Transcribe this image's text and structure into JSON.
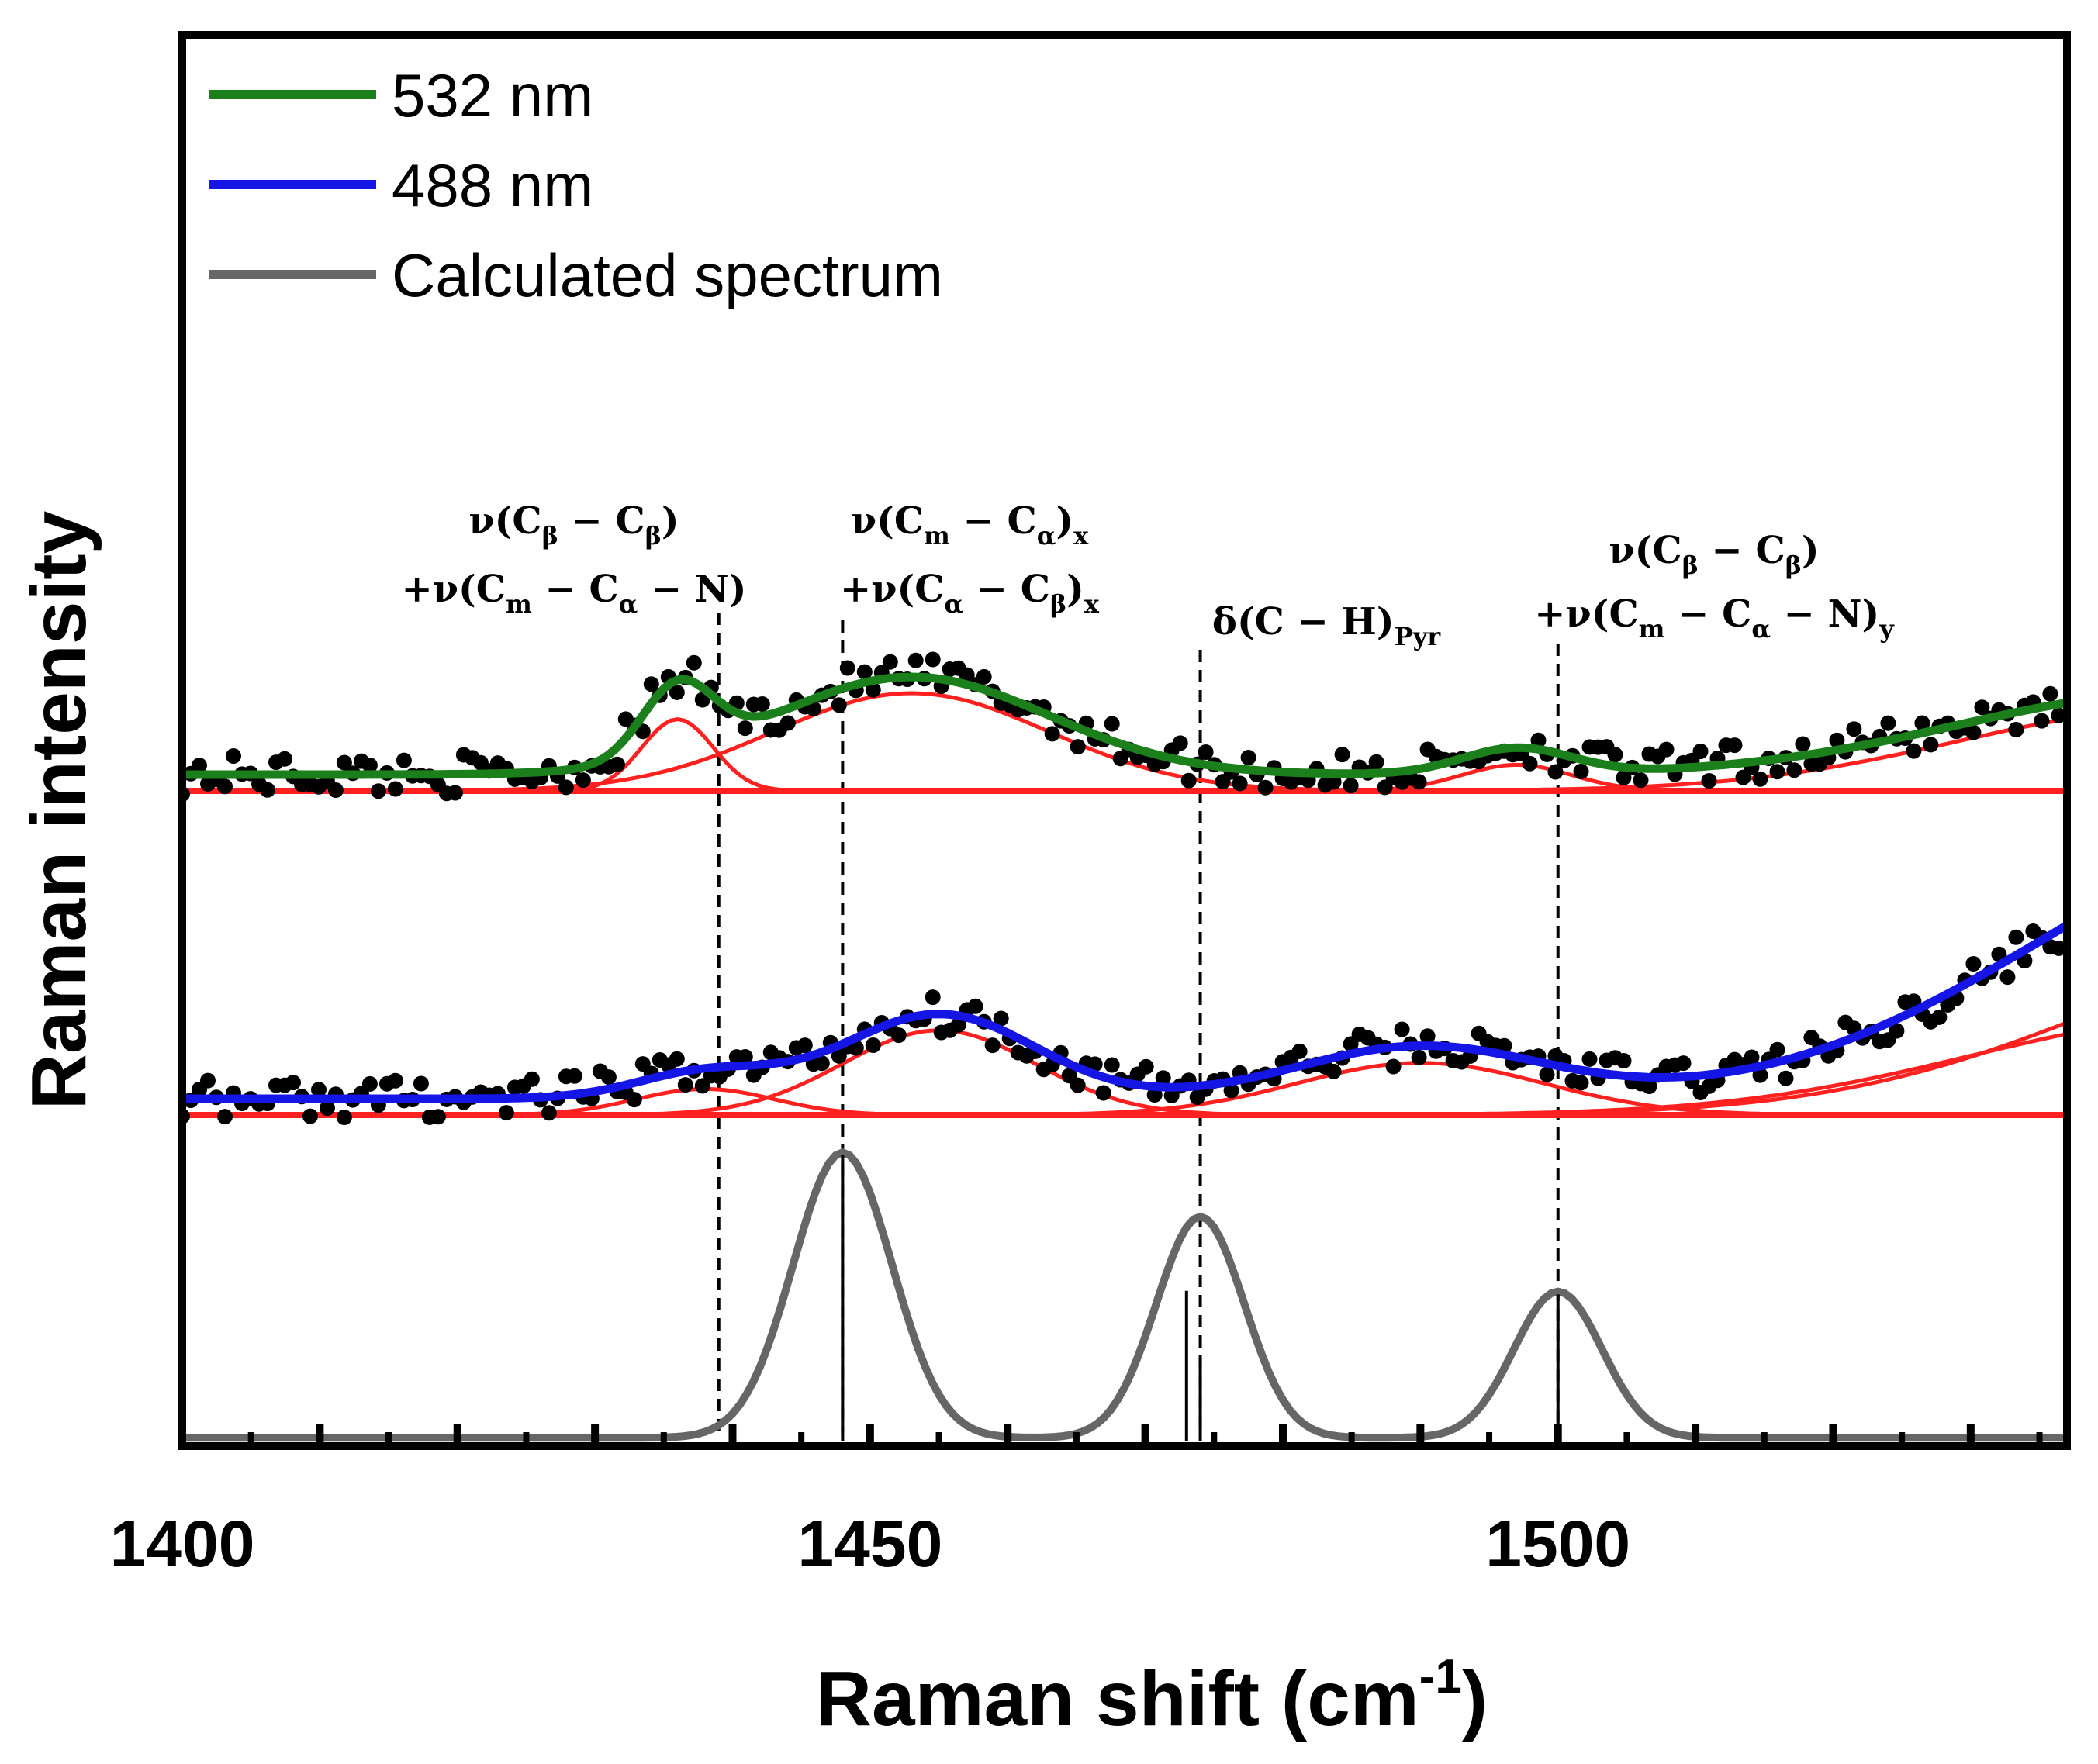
{
  "chart_data": {
    "type": "line",
    "title": "",
    "xlabel": "Raman shift (cm",
    "xlabel_sup": "-1",
    "xlabel_close": ")",
    "ylabel": "Raman intensity",
    "xlim": [
      1400,
      1537
    ],
    "xticks": [
      {
        "value": 1400,
        "label": "1400"
      },
      {
        "value": 1450,
        "label": "1450"
      },
      {
        "value": 1500,
        "label": "1500"
      }
    ],
    "grid": false,
    "legend_position": "top-left",
    "legend": [
      {
        "name": "532 nm",
        "color": "#1b7f1b"
      },
      {
        "name": "488 nm",
        "color": "#1515e6"
      },
      {
        "name": "Calculated spectrum",
        "color": "#666666"
      }
    ],
    "colors": {
      "component": "#ff2020",
      "data_points": "#000000",
      "stick": "#000000"
    },
    "series": [
      {
        "name": "532 nm",
        "baseline": 0,
        "offset": 0.96,
        "scale": 1.0,
        "components": [
          {
            "center": 1436,
            "amplitude": 0.22,
            "width": 2.6
          },
          {
            "center": 1453,
            "amplitude": 0.3,
            "width": 10
          },
          {
            "center": 1497,
            "amplitude": 0.08,
            "width": 4
          },
          {
            "center": 1545,
            "amplitude": 0.25,
            "width": 16
          }
        ]
      },
      {
        "name": "488 nm",
        "baseline": 0,
        "offset": 0.24,
        "scale": 1.0,
        "components": [
          {
            "center": 1438,
            "amplitude": 0.08,
            "width": 5
          },
          {
            "center": 1455,
            "amplitude": 0.26,
            "width": 7
          },
          {
            "center": 1490,
            "amplitude": 0.16,
            "width": 9
          },
          {
            "center": 1548,
            "amplitude": 0.3,
            "width": 18
          },
          {
            "center": 1560,
            "amplitude": 0.55,
            "width": 20
          }
        ]
      }
    ],
    "calculated_spectrum": {
      "peaks": [
        {
          "center": 1448,
          "amplitude": 0.8,
          "width": 3.6
        },
        {
          "center": 1474,
          "amplitude": 0.62,
          "width": 3.2
        },
        {
          "center": 1500,
          "amplitude": 0.41,
          "width": 3.2
        }
      ],
      "sticks": [
        {
          "x": 1448,
          "height": 0.8
        },
        {
          "x": 1473,
          "height": 0.42
        },
        {
          "x": 1474,
          "height": 0.23
        },
        {
          "x": 1500,
          "height": 0.41
        }
      ]
    },
    "annotations": [
      {
        "x": 1439,
        "lines": [
          "ν(Cβ − Cβ)",
          "+ν(Cm − Cα − N)"
        ]
      },
      {
        "x": 1448,
        "lines": [
          "ν(Cm − Cα)x",
          "+ν(Cα − Cβ)x"
        ]
      },
      {
        "x": 1474,
        "lines": [
          "δ(C − H)Pyr"
        ]
      },
      {
        "x": 1500,
        "lines": [
          "ν(Cβ − Cβ)",
          "+ν(Cm − Cα − N)y"
        ]
      }
    ]
  }
}
